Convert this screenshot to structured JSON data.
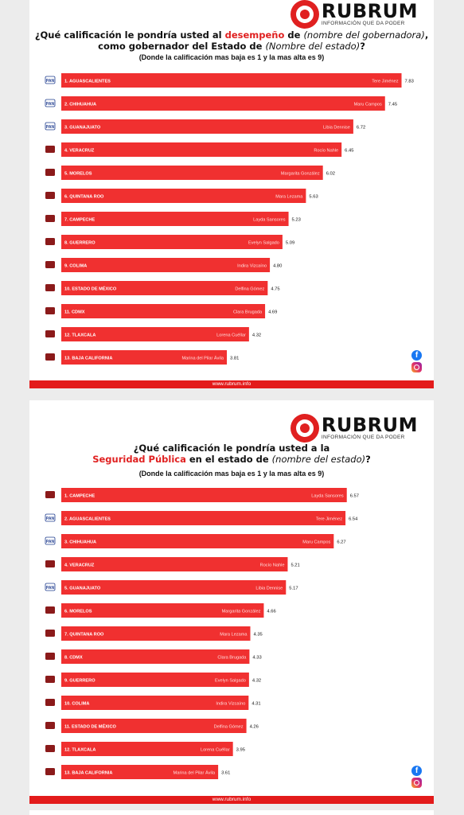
{
  "brand": {
    "name": "RUBRUM",
    "tagline": "INFORMACIÓN QUE DA PODER",
    "website": "www.rubrum.info"
  },
  "colors": {
    "bar": "#f03030",
    "accent": "#e02020",
    "pan": "#1f3c8f",
    "morena": "#8b1a1a"
  },
  "chart_data": [
    {
      "type": "bar",
      "title": {
        "p1": "¿Qué calificación le pondría usted al ",
        "p2": "desempeño",
        "p3": " de ",
        "p4": "(nombre del gobernadora)",
        "p5": ", como gobernador del Estado de ",
        "p6": "(Nombre del estado)",
        "p7": "?"
      },
      "subtitle": "(Donde la calificación mas baja es 1 y la mas alta es 9)",
      "xlim": [
        0,
        9
      ],
      "categories": [
        "1. AGUASCALIENTES",
        "2. CHIHUAHUA",
        "3. GUANAJUATO",
        "4. VERACRUZ",
        "5. MORELOS",
        "6. QUINTANA ROO",
        "7. CAMPECHE",
        "8. GUERRERO",
        "9. COLIMA",
        "10. ESTADO DE MÉXICO",
        "11. CDMX",
        "12. TLAXCALA",
        "13. BAJA CALIFORNIA"
      ],
      "governors": [
        "Tere Jiménez",
        "Maru Campos",
        "Libia Dennise",
        "Rocío Nahle",
        "Margarita González",
        "Mara Lezama",
        "Layda Sansores",
        "Evelyn Salgado",
        "Indira Vizcaíno",
        "Delfina Gómez",
        "Clara Brugada",
        "Lorena Cuéllar",
        "Marina del Pilar Ávila"
      ],
      "party_icons": [
        "pan-logo",
        "pan-logo",
        "pan-logo",
        "morena-logo",
        "morena-logo",
        "morena-logo",
        "morena-logo",
        "morena-logo",
        "morena-logo",
        "morena-logo",
        "morena-logo",
        "morena-logo",
        "morena-logo"
      ],
      "values": [
        7.83,
        7.45,
        6.72,
        6.45,
        6.02,
        5.63,
        5.23,
        5.09,
        4.8,
        4.75,
        4.69,
        4.32,
        3.81
      ],
      "value_labels": [
        "7.83",
        "7.45",
        "6.72",
        "6.45",
        "6.02",
        "5.63",
        "5.23",
        "5.09",
        "4.80",
        "4.75",
        "4.69",
        "4.32",
        "3.81"
      ]
    },
    {
      "type": "bar",
      "title": {
        "p1": "¿Qué calificación le pondría usted a la",
        "p2": "Seguridad Pública",
        "p3": " en el estado de ",
        "p4": "(nombre del estado)",
        "p5": "?"
      },
      "subtitle": "(Donde la calificación mas baja es 1 y la mas alta es 9)",
      "xlim": [
        0,
        9
      ],
      "categories": [
        "1. CAMPECHE",
        "2. AGUASCALIENTES",
        "3. CHIHUAHUA",
        "4. VERACRUZ",
        "5. GUANAJUATO",
        "6. MORELOS",
        "7. QUINTANA ROO",
        "8. CDMX",
        "9. GUERRERO",
        "10. COLIMA",
        "11. ESTADO DE MÉXICO",
        "12. TLAXCALA",
        "13. BAJA CALIFORNIA"
      ],
      "governors": [
        "Layda Sansores",
        "Tere Jiménez",
        "Maru Campos",
        "Rocío Nahle",
        "Libia Dennise",
        "Margarita González",
        "Mara Lezama",
        "Clara Brugada",
        "Evelyn Salgado",
        "Indira Vizcaíno",
        "Delfina Gómez",
        "Lorena Cuéllar",
        "Marina del Pilar Ávila"
      ],
      "party_icons": [
        "morena-logo",
        "pan-logo",
        "pan-logo",
        "morena-logo",
        "pan-logo",
        "morena-logo",
        "morena-logo",
        "morena-logo",
        "morena-logo",
        "morena-logo",
        "morena-logo",
        "morena-logo",
        "morena-logo"
      ],
      "values": [
        6.57,
        6.54,
        6.27,
        5.21,
        5.17,
        4.66,
        4.35,
        4.33,
        4.32,
        4.31,
        4.26,
        3.95,
        3.61
      ],
      "value_labels": [
        "6.57",
        "6.54",
        "6.27",
        "5.21",
        "5.17",
        "4.66",
        "4.35",
        "4.33",
        "4.32",
        "4.31",
        "4.26",
        "3.95",
        "3.61"
      ]
    }
  ]
}
